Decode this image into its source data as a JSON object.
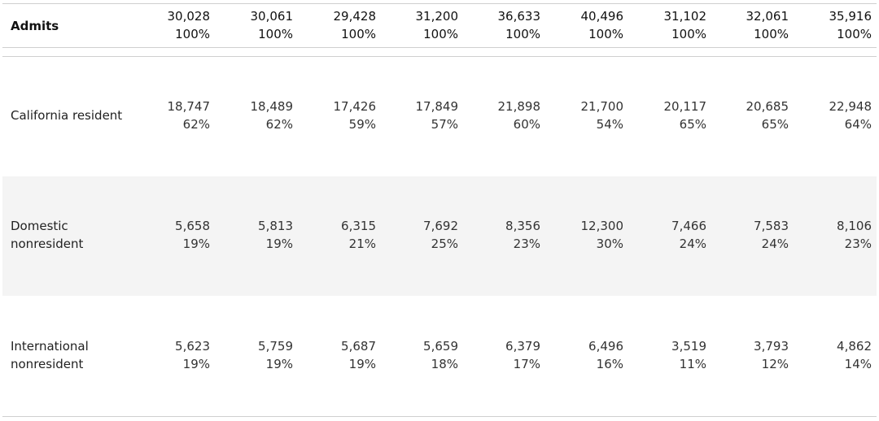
{
  "chart_data": {
    "type": "table",
    "header": {
      "label": "Admits",
      "values": [
        "30,028",
        "30,061",
        "29,428",
        "31,200",
        "36,633",
        "40,496",
        "31,102",
        "32,061",
        "35,916"
      ],
      "percents": [
        "100%",
        "100%",
        "100%",
        "100%",
        "100%",
        "100%",
        "100%",
        "100%",
        "100%"
      ]
    },
    "rows": [
      {
        "label_lines": [
          "California resident"
        ],
        "values": [
          "18,747",
          "18,489",
          "17,426",
          "17,849",
          "21,898",
          "21,700",
          "20,117",
          "20,685",
          "22,948"
        ],
        "percents": [
          "62%",
          "62%",
          "59%",
          "57%",
          "60%",
          "54%",
          "65%",
          "65%",
          "64%"
        ]
      },
      {
        "label_lines": [
          "Domestic",
          "nonresident"
        ],
        "values": [
          "5,658",
          "5,813",
          "6,315",
          "7,692",
          "8,356",
          "12,300",
          "7,466",
          "7,583",
          "8,106"
        ],
        "percents": [
          "19%",
          "19%",
          "21%",
          "25%",
          "23%",
          "30%",
          "24%",
          "24%",
          "23%"
        ]
      },
      {
        "label_lines": [
          "International",
          "nonresident"
        ],
        "values": [
          "5,623",
          "5,759",
          "5,687",
          "5,659",
          "6,379",
          "6,496",
          "3,519",
          "3,793",
          "4,862"
        ],
        "percents": [
          "19%",
          "19%",
          "19%",
          "18%",
          "17%",
          "16%",
          "11%",
          "12%",
          "14%"
        ]
      }
    ]
  },
  "colors": {
    "band": "#f4f4f4",
    "divider": "#cfcfcf",
    "text": "#333333"
  }
}
